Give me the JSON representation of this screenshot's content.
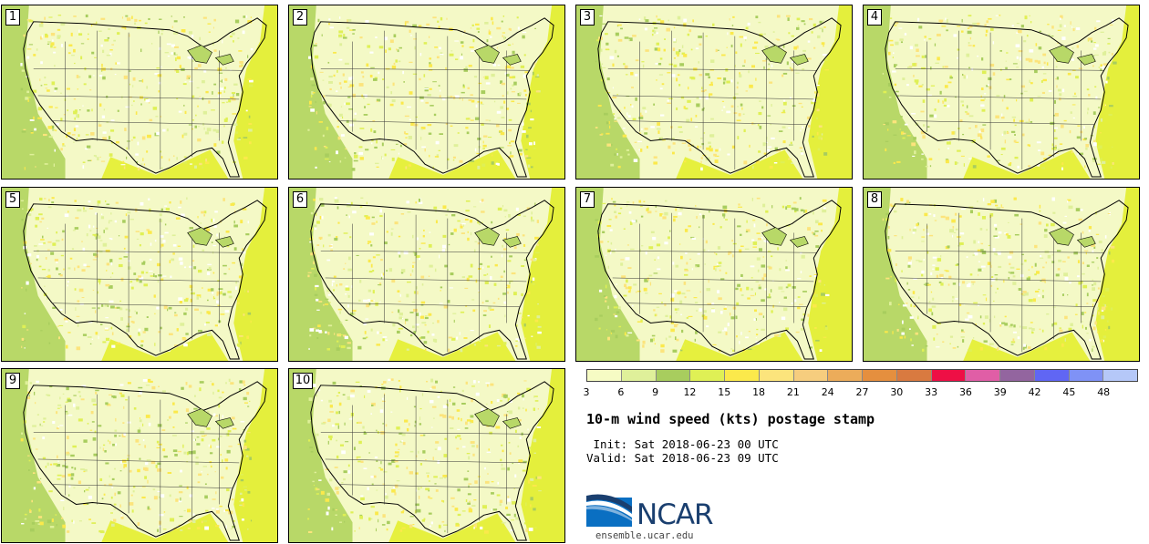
{
  "panels": [
    {
      "label": "1"
    },
    {
      "label": "2"
    },
    {
      "label": "3"
    },
    {
      "label": "4"
    },
    {
      "label": "5"
    },
    {
      "label": "6"
    },
    {
      "label": "7"
    },
    {
      "label": "8"
    },
    {
      "label": "9"
    },
    {
      "label": "10"
    }
  ],
  "colorbar": {
    "colors": [
      "#f6fbc4",
      "#dff09a",
      "#a8cd5e",
      "#dff055",
      "#fbe94b",
      "#fce47c",
      "#f6cd7e",
      "#ecac5a",
      "#e58f3e",
      "#d97a40",
      "#ee0f45",
      "#e05ea6",
      "#93659f",
      "#6066f4",
      "#7f92f6",
      "#b5c8f8"
    ],
    "ticks": [
      "3",
      "6",
      "9",
      "12",
      "15",
      "18",
      "21",
      "24",
      "27",
      "30",
      "33",
      "36",
      "39",
      "42",
      "45",
      "48"
    ]
  },
  "title": "10-m wind speed (kts) postage stamp",
  "init": " Init: Sat 2018-06-23 00 UTC",
  "valid": "Valid: Sat 2018-06-23 09 UTC",
  "logo": {
    "text": "NCAR",
    "site": "ensemble.ucar.edu"
  }
}
